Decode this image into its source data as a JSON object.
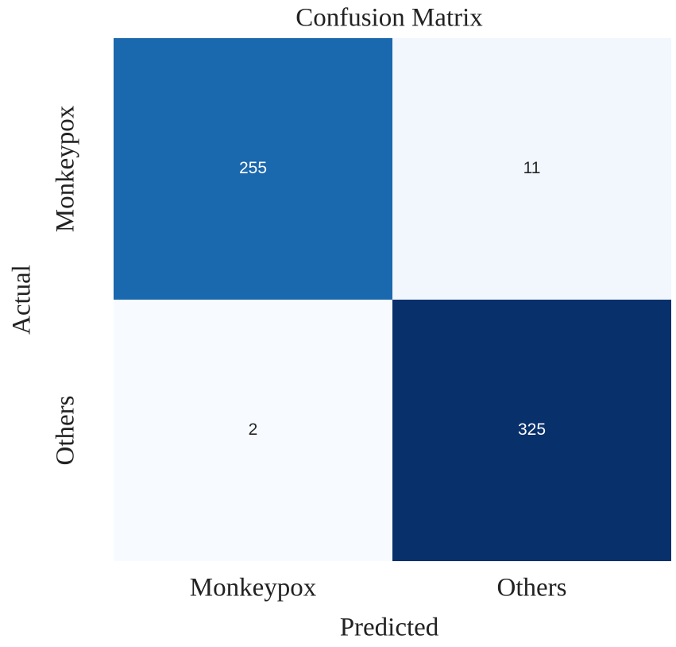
{
  "chart_data": {
    "type": "heatmap",
    "title": "Confusion Matrix",
    "xlabel": "Predicted",
    "ylabel": "Actual",
    "x_categories": [
      "Monkeypox",
      "Others"
    ],
    "y_categories": [
      "Monkeypox",
      "Others"
    ],
    "values": [
      [
        255,
        11
      ],
      [
        2,
        325
      ]
    ],
    "colormap": "Blues"
  }
}
